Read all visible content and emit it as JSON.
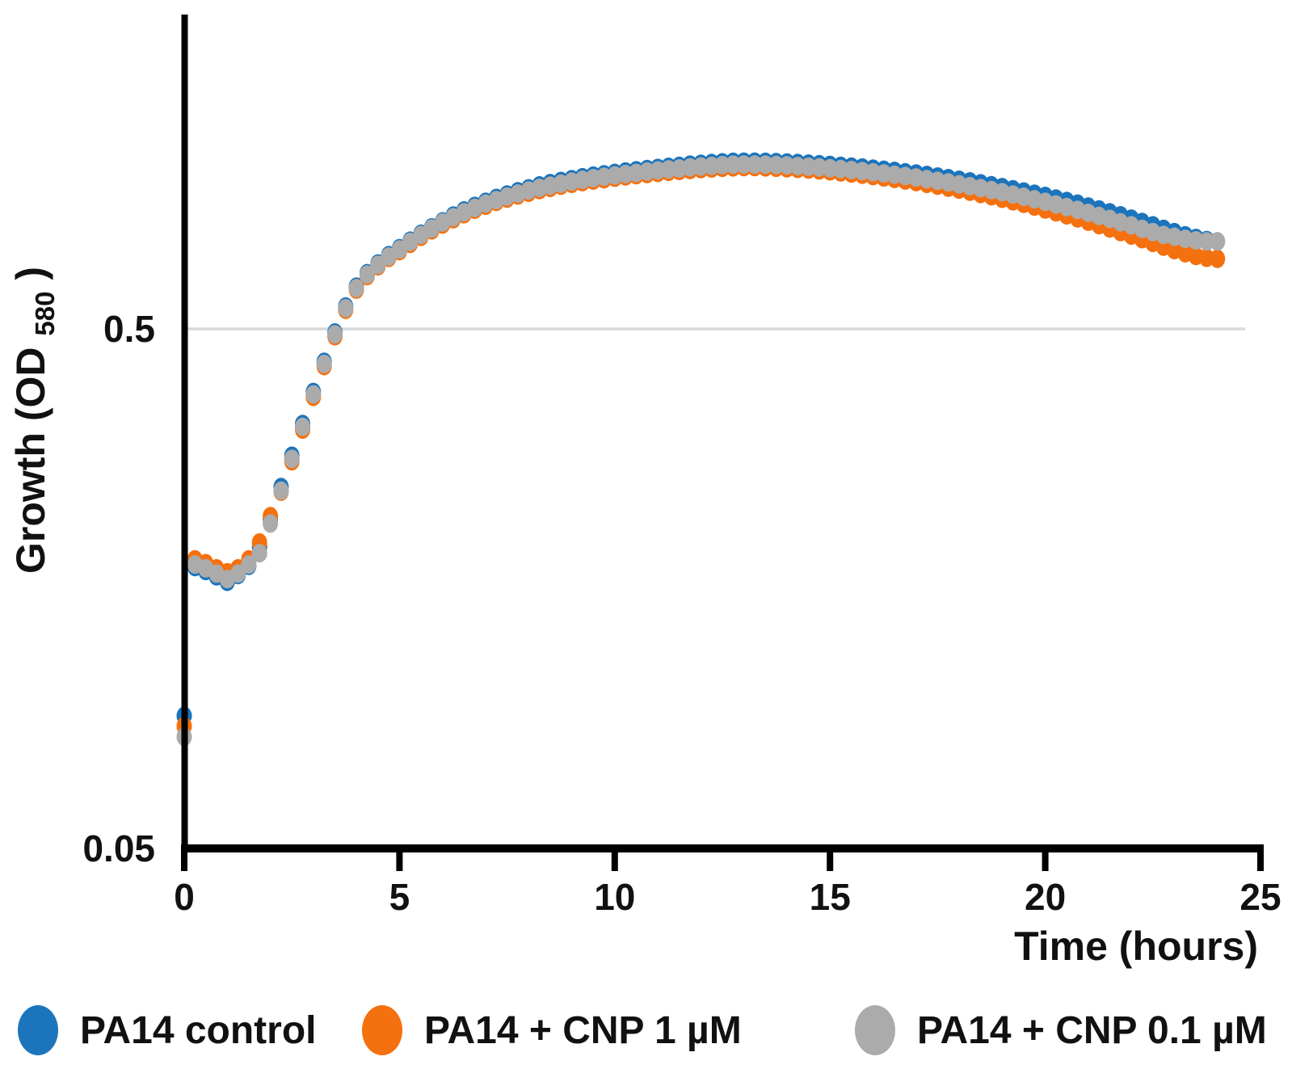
{
  "chart_data": {
    "type": "scatter",
    "title": "",
    "xlabel": "Time (hours)",
    "ylabel_main": "Growth (OD",
    "ylabel_sub": "580",
    "ylabel_suffix": ")",
    "x_axis": {
      "min": 0,
      "max": 25,
      "ticks": [
        0,
        5,
        10,
        15,
        20,
        25
      ]
    },
    "y_axis": {
      "scale": "log",
      "min": 0.05,
      "max": 2.0,
      "ticks": [
        {
          "label": "0.5",
          "value": 0.5
        },
        {
          "label": "0.05",
          "value": 0.05
        }
      ],
      "gridline_at": 0.5
    },
    "grid_color": "#D9D9D9",
    "axis_color": "#000000",
    "t_start": 0,
    "t_step": 0.25,
    "series": [
      {
        "name": "PA14 control",
        "color": "#1B74BC",
        "od": [
          0.09,
          0.174,
          0.171,
          0.167,
          0.163,
          0.168,
          0.175,
          0.19,
          0.215,
          0.248,
          0.285,
          0.328,
          0.378,
          0.432,
          0.492,
          0.552,
          0.603,
          0.64,
          0.668,
          0.693,
          0.715,
          0.739,
          0.762,
          0.784,
          0.805,
          0.826,
          0.845,
          0.862,
          0.878,
          0.893,
          0.907,
          0.92,
          0.932,
          0.944,
          0.954,
          0.963,
          0.971,
          0.979,
          0.986,
          0.992,
          0.998,
          1.004,
          1.01,
          1.015,
          1.02,
          1.025,
          1.03,
          1.035,
          1.039,
          1.043,
          1.046,
          1.048,
          1.049,
          1.049,
          1.048,
          1.047,
          1.045,
          1.043,
          1.04,
          1.037,
          1.034,
          1.03,
          1.026,
          1.022,
          1.017,
          1.012,
          1.007,
          1.001,
          0.995,
          0.989,
          0.982,
          0.975,
          0.968,
          0.961,
          0.953,
          0.945,
          0.937,
          0.928,
          0.919,
          0.91,
          0.901,
          0.891,
          0.881,
          0.871,
          0.86,
          0.849,
          0.838,
          0.827,
          0.815,
          0.803,
          0.791,
          0.779,
          0.768,
          0.757,
          0.748,
          0.741,
          0.737
        ]
      },
      {
        "name": "PA14 + CNP 1 µM",
        "color": "#F5700E",
        "od": [
          0.086,
          0.18,
          0.177,
          0.173,
          0.17,
          0.173,
          0.18,
          0.194,
          0.218,
          0.243,
          0.278,
          0.32,
          0.37,
          0.424,
          0.484,
          0.544,
          0.595,
          0.632,
          0.66,
          0.685,
          0.706,
          0.729,
          0.752,
          0.774,
          0.794,
          0.813,
          0.831,
          0.848,
          0.863,
          0.878,
          0.891,
          0.903,
          0.914,
          0.925,
          0.934,
          0.943,
          0.951,
          0.958,
          0.965,
          0.971,
          0.977,
          0.983,
          0.988,
          0.993,
          0.998,
          1.003,
          1.007,
          1.011,
          1.015,
          1.018,
          1.021,
          1.023,
          1.024,
          1.024,
          1.023,
          1.021,
          1.019,
          1.016,
          1.013,
          1.009,
          1.005,
          1.0,
          0.995,
          0.99,
          0.984,
          0.978,
          0.972,
          0.965,
          0.958,
          0.951,
          0.943,
          0.935,
          0.927,
          0.918,
          0.909,
          0.9,
          0.89,
          0.88,
          0.87,
          0.86,
          0.849,
          0.838,
          0.827,
          0.816,
          0.804,
          0.792,
          0.78,
          0.768,
          0.756,
          0.744,
          0.732,
          0.72,
          0.709,
          0.699,
          0.691,
          0.685,
          0.682
        ]
      },
      {
        "name": "PA14 + CNP 0.1 µM",
        "color": "#ABABAB",
        "od": [
          0.082,
          0.176,
          0.173,
          0.169,
          0.165,
          0.169,
          0.176,
          0.185,
          0.211,
          0.244,
          0.281,
          0.324,
          0.374,
          0.428,
          0.488,
          0.548,
          0.599,
          0.636,
          0.664,
          0.689,
          0.711,
          0.735,
          0.758,
          0.78,
          0.801,
          0.82,
          0.838,
          0.855,
          0.871,
          0.885,
          0.899,
          0.911,
          0.923,
          0.934,
          0.943,
          0.952,
          0.96,
          0.968,
          0.975,
          0.981,
          0.987,
          0.993,
          0.998,
          1.004,
          1.009,
          1.014,
          1.018,
          1.023,
          1.027,
          1.03,
          1.033,
          1.035,
          1.036,
          1.036,
          1.035,
          1.034,
          1.032,
          1.029,
          1.026,
          1.023,
          1.019,
          1.015,
          1.011,
          1.006,
          1.001,
          0.996,
          0.99,
          0.984,
          0.978,
          0.971,
          0.964,
          0.957,
          0.949,
          0.941,
          0.933,
          0.925,
          0.916,
          0.907,
          0.898,
          0.888,
          0.878,
          0.868,
          0.858,
          0.847,
          0.836,
          0.825,
          0.814,
          0.802,
          0.791,
          0.779,
          0.768,
          0.758,
          0.752,
          0.745,
          0.74,
          0.737,
          0.737
        ]
      }
    ],
    "legend_position": "bottom"
  }
}
